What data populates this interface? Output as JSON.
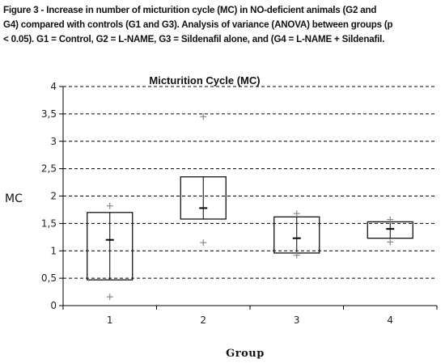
{
  "caption": [
    "Figure 3 - Increase in number of micturition cycle (MC) in NO-deficient animals (G2 and",
    "G4) compared with controls (G1 and G3). Analysis of variance (ANOVA) between groups (p",
    "< 0.05). G1 = Control, G2 = L-NAME, G3 = Sildenafil alone, and (G4 = L-NAME + Sildenafil."
  ],
  "chart_data": {
    "type": "boxplot",
    "title": "Micturition Cycle (MC)",
    "xlabel": "Group",
    "ylabel": "MC",
    "ylim": [
      0,
      4
    ],
    "yticks": [
      0,
      0.5,
      1,
      1.5,
      2,
      2.5,
      3,
      3.5,
      4
    ],
    "ytick_labels": [
      "0",
      "0,5",
      "1",
      "1,5",
      "2",
      "2,5",
      "3",
      "3,5",
      "4"
    ],
    "grid": "horizontal dashed",
    "categories": [
      "1",
      "2",
      "3",
      "4"
    ],
    "boxes": [
      {
        "group": "1",
        "q1": 0.47,
        "median": 1.2,
        "q3": 1.7,
        "min": 0.16,
        "max": 1.82
      },
      {
        "group": "2",
        "q1": 1.58,
        "median": 1.78,
        "q3": 2.35,
        "min": 1.15,
        "max": 3.45
      },
      {
        "group": "3",
        "q1": 0.96,
        "median": 1.23,
        "q3": 1.62,
        "min": 0.92,
        "max": 1.68
      },
      {
        "group": "4",
        "q1": 1.23,
        "median": 1.4,
        "q3": 1.53,
        "min": 1.16,
        "max": 1.57
      }
    ]
  }
}
